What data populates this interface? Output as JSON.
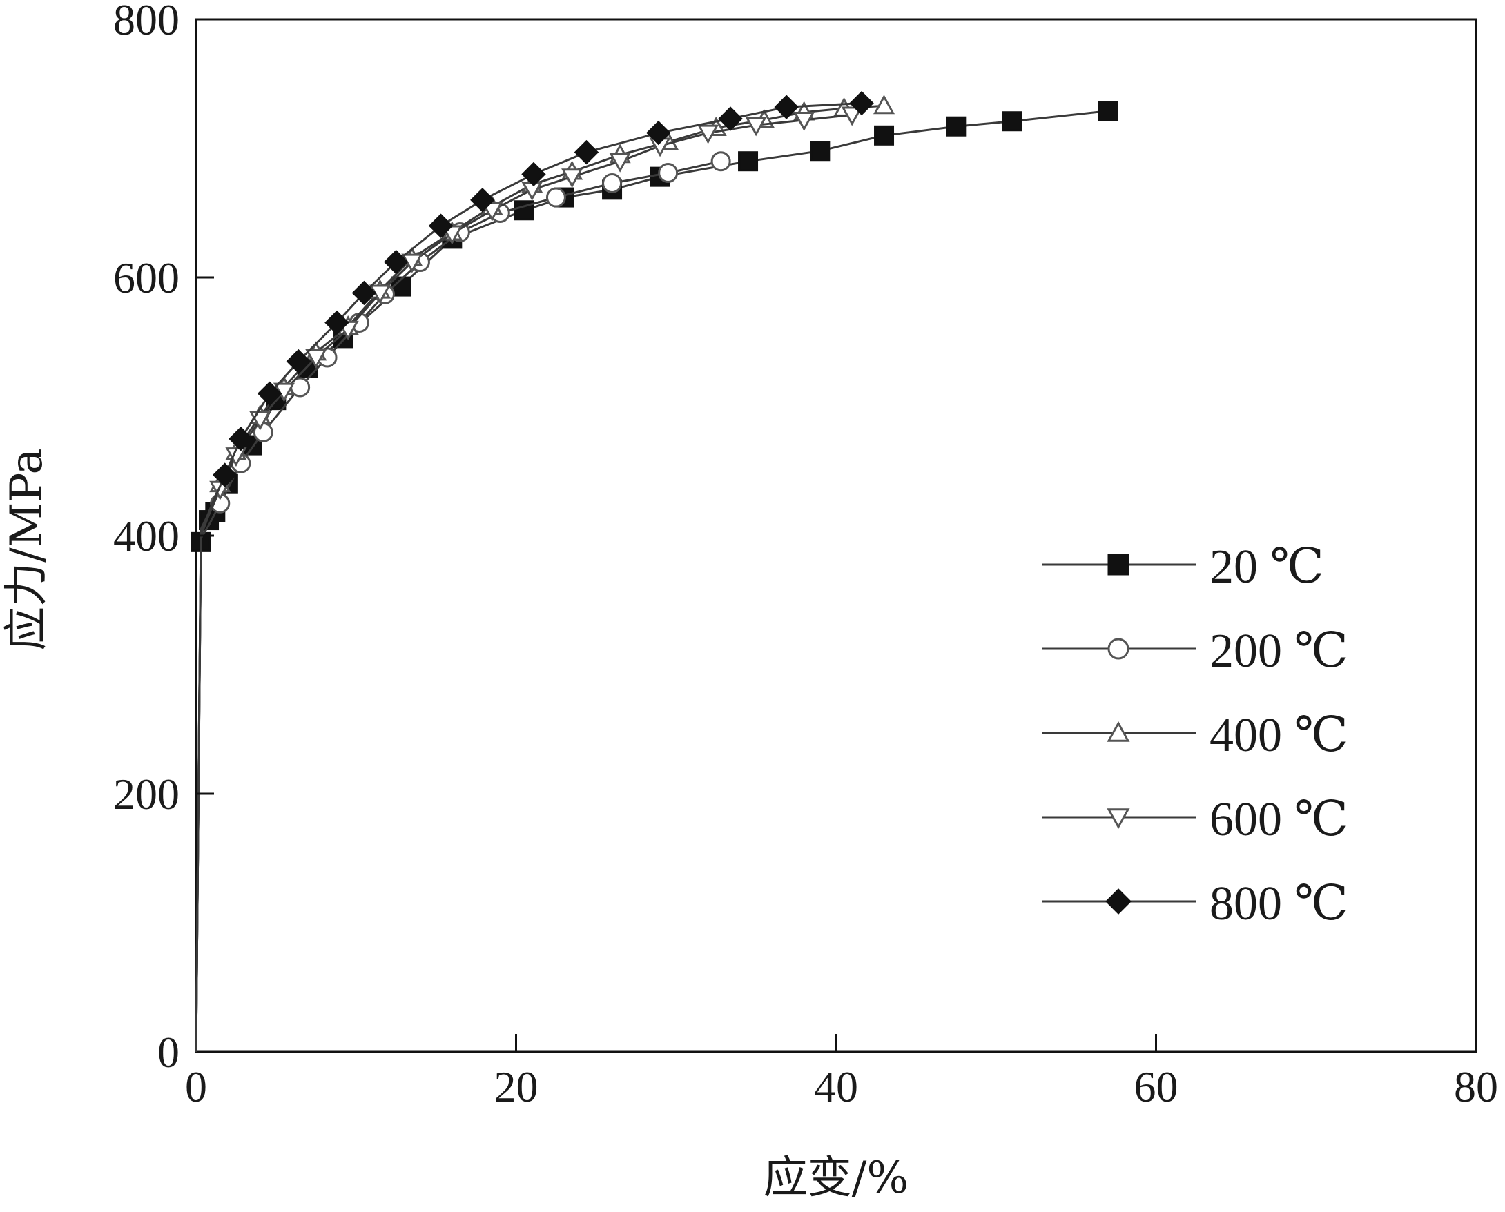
{
  "chart_data": {
    "type": "line",
    "xlabel": "应变/%",
    "ylabel": "应力/MPa",
    "xlim": [
      0,
      80
    ],
    "ylim": [
      0,
      800
    ],
    "xticks": [
      "0",
      "20",
      "40",
      "60",
      "80"
    ],
    "yticks": [
      "0",
      "200",
      "400",
      "600",
      "800"
    ],
    "grid": false,
    "legend_position": "right",
    "line_color": "#3a3a3a",
    "series": [
      {
        "name": "20 ℃",
        "marker": "square-filled",
        "x": [
          0,
          0.3,
          0.8,
          1.2,
          2.0,
          3.5,
          5.0,
          7.0,
          9.2,
          12.8,
          16.0,
          20.5,
          23.0,
          26.0,
          29.0,
          34.5,
          39.0,
          43.0,
          47.5,
          51.0,
          57.0
        ],
        "y": [
          0,
          395,
          412,
          418,
          440,
          470,
          505,
          530,
          553,
          593,
          630,
          652,
          662,
          668,
          678,
          690,
          698,
          710,
          717,
          721,
          729
        ]
      },
      {
        "name": "200 ℃",
        "marker": "circle-open",
        "x": [
          0,
          0.3,
          0.8,
          1.5,
          2.8,
          4.2,
          6.5,
          8.2,
          10.2,
          11.8,
          14.0,
          16.5,
          19.0,
          22.5,
          26.0,
          29.5,
          32.8
        ],
        "y": [
          0,
          398,
          408,
          425,
          456,
          480,
          515,
          538,
          565,
          587,
          612,
          635,
          650,
          662,
          673,
          681,
          690
        ]
      },
      {
        "name": "400 ℃",
        "marker": "triangle-up-open",
        "x": [
          0,
          0.3,
          0.8,
          1.5,
          2.5,
          4.0,
          5.5,
          7.5,
          9.5,
          11.5,
          13.5,
          16.0,
          18.5,
          21.0,
          23.5,
          26.5,
          29.5,
          32.5,
          35.5,
          38.0,
          40.5,
          43.0
        ],
        "y": [
          0,
          400,
          418,
          440,
          465,
          493,
          515,
          542,
          562,
          590,
          615,
          635,
          655,
          672,
          682,
          695,
          705,
          716,
          722,
          728,
          731,
          733
        ]
      },
      {
        "name": "600 ℃",
        "marker": "triangle-down-open",
        "x": [
          0,
          0.3,
          0.8,
          1.5,
          2.5,
          4.0,
          5.5,
          7.5,
          9.5,
          11.5,
          13.5,
          16.0,
          18.5,
          21.0,
          23.5,
          26.5,
          29.0,
          32.0,
          35.0,
          38.0,
          41.0
        ],
        "y": [
          0,
          400,
          416,
          436,
          462,
          490,
          512,
          538,
          560,
          588,
          612,
          634,
          652,
          668,
          678,
          690,
          702,
          712,
          718,
          722,
          726
        ]
      },
      {
        "name": "800 ℃",
        "marker": "diamond-filled",
        "x": [
          0,
          0.3,
          0.7,
          1.8,
          2.8,
          4.6,
          6.4,
          8.8,
          10.5,
          12.5,
          15.3,
          17.9,
          21.1,
          24.4,
          28.9,
          33.4,
          36.9,
          41.6
        ],
        "y": [
          0,
          405,
          415,
          447,
          475,
          510,
          535,
          565,
          588,
          612,
          640,
          660,
          680,
          697,
          712,
          723,
          732,
          735
        ]
      }
    ]
  }
}
